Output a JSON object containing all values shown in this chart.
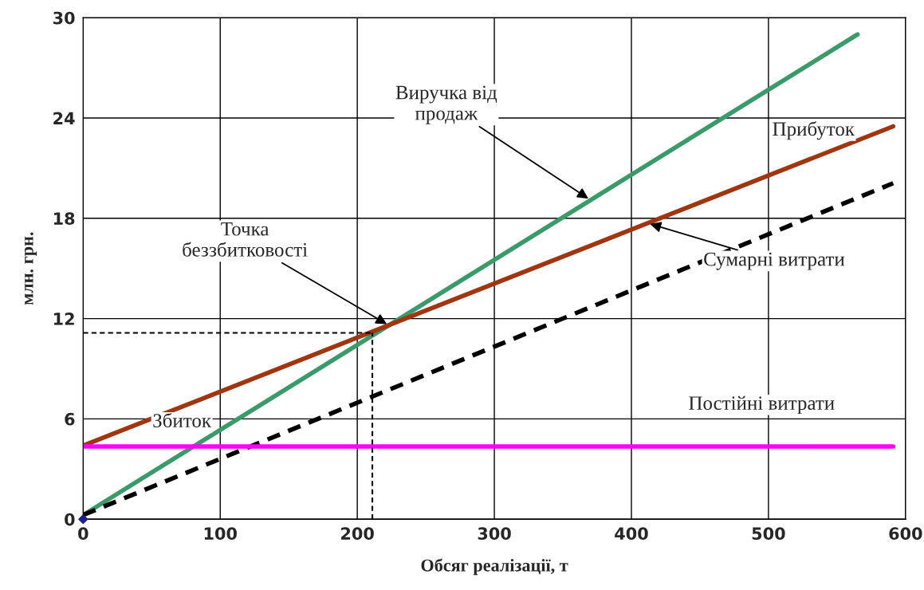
{
  "chart_data": {
    "type": "line",
    "xlabel": "Обсяг реалізації, т",
    "ylabel": "млн. грн.",
    "xlim": [
      0,
      600
    ],
    "ylim": [
      0,
      30
    ],
    "xticks": [
      0,
      100,
      200,
      300,
      400,
      500,
      600
    ],
    "yticks": [
      0,
      6,
      12,
      18,
      24,
      30
    ],
    "grid": true,
    "marker": "none",
    "series": [
      {
        "color": "#3a9a6a",
        "x": [
          0,
          565
        ],
        "values": [
          0.25,
          29.0
        ],
        "line_style": "solid"
      },
      {
        "color": "#a0360f",
        "x": [
          0,
          591
        ],
        "values": [
          4.4,
          23.5
        ],
        "line_style": "solid"
      },
      {
        "color": "#000000",
        "x": [
          0,
          591
        ],
        "values": [
          0.25,
          20.1
        ],
        "line_style": "dashed"
      },
      {
        "color": "#ff00ff",
        "x": [
          0,
          591
        ],
        "values": [
          4.35,
          4.35
        ],
        "line_style": "solid"
      },
      {
        "color": "#000000",
        "x": [
          211,
          211
        ],
        "values": [
          0,
          11.15
        ],
        "line_style": "dashed"
      },
      {
        "color": "#000000",
        "x": [
          0,
          211
        ],
        "values": [
          11.15,
          11.15
        ],
        "line_style": "dashed"
      },
      {
        "type": "scatter",
        "color": "#1f1f8f",
        "x": [
          0
        ],
        "values": [
          0
        ],
        "marker": "diamond"
      }
    ],
    "annotations": [
      {
        "text": "Виручка від\nпродаж",
        "x": 370,
        "y": 19.1
      },
      {
        "text": "Точка\nбеззбитковості",
        "x": 223,
        "y": 11.6
      },
      {
        "text": "Сумарні витрати",
        "x": 412,
        "y": 17.7
      },
      "Прибуток",
      "Постійні витрати",
      "Збиток"
    ]
  }
}
